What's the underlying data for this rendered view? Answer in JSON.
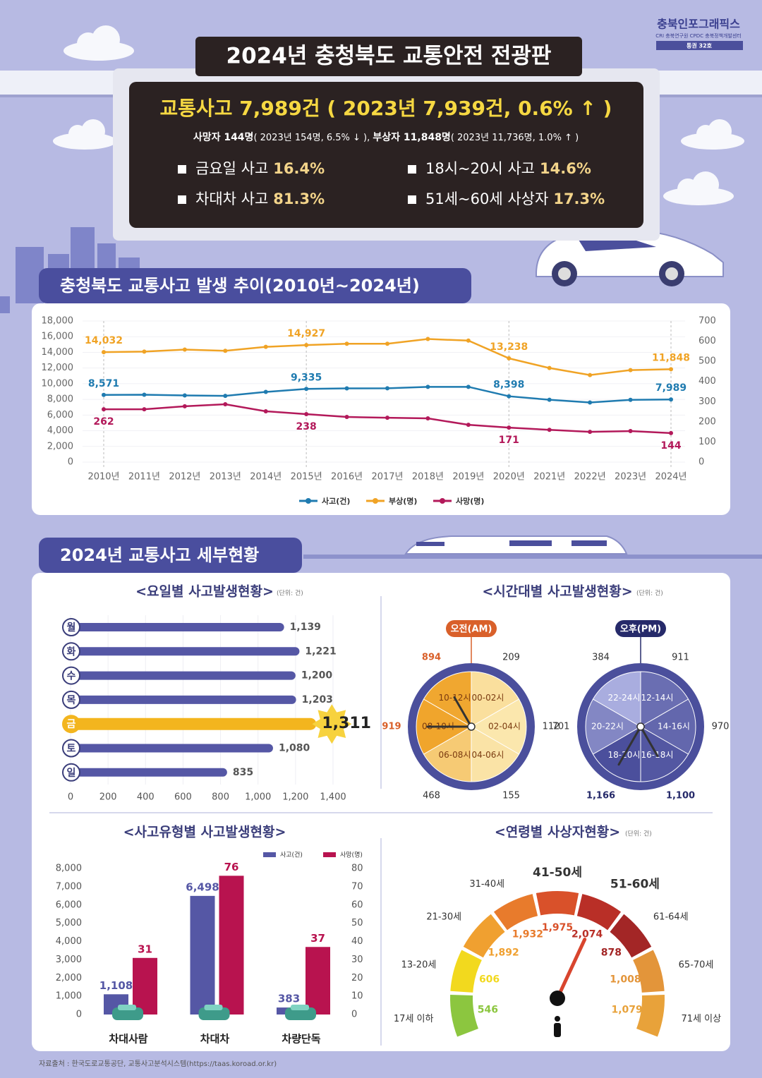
{
  "header": {
    "brand": "충북인포그래픽스",
    "brand_sub": "CRI 충북연구원 CPDC 충북정책개발센터",
    "issue": "통권 32호",
    "title": "2024년 충청북도 교통안전 전광판"
  },
  "summary": {
    "headline": "교통사고 7,989건 ( 2023년 7,939건, 0.6% ↑ )",
    "detail": [
      "사망자 144명",
      "( 2023년 154명, 6.5% ↓ ), ",
      "부상자 11,848명",
      "( 2023년 11,736명, 1.0% ↑ )"
    ],
    "highlights": [
      {
        "label": "금요일 사고",
        "value": "16.4%"
      },
      {
        "label": "18시~20시 사고",
        "value": "14.6%"
      },
      {
        "label": "차대차 사고",
        "value": "81.3%"
      },
      {
        "label": "51세~60세 사상자",
        "value": "17.3%"
      }
    ]
  },
  "sections": [
    "충청북도 교통사고 발생 추이(2010년~2024년)",
    "2024년 교통사고 세부현황"
  ],
  "chart_data": [
    {
      "type": "line",
      "categories": [
        "2010년",
        "2011년",
        "2012년",
        "2013년",
        "2014년",
        "2015년",
        "2016년",
        "2017년",
        "2018년",
        "2019년",
        "2020년",
        "2021년",
        "2022년",
        "2023년",
        "2024년"
      ],
      "series": [
        {
          "name": "사고(건)",
          "color": "#1f7bb0",
          "values": [
            8571,
            8600,
            8500,
            8450,
            8950,
            9335,
            9400,
            9420,
            9600,
            9600,
            8398,
            7950,
            7600,
            7939,
            7989
          ],
          "value_labels": [
            "8,571",
            null,
            null,
            null,
            null,
            "9,335",
            null,
            null,
            null,
            null,
            "8,398",
            null,
            null,
            null,
            "7,989"
          ]
        },
        {
          "name": "부상(명)",
          "color": "#f0a325",
          "values": [
            14032,
            14100,
            14350,
            14200,
            14700,
            14927,
            15100,
            15100,
            15700,
            15500,
            13238,
            12000,
            11100,
            11736,
            11848
          ],
          "value_labels": [
            "14,032",
            null,
            null,
            null,
            null,
            "14,927",
            null,
            null,
            null,
            null,
            "13,238",
            null,
            null,
            null,
            "11,848"
          ]
        },
        {
          "name": "사망(명)",
          "color": "#b3195a",
          "axis": "y2",
          "values": [
            262,
            262,
            277,
            287,
            252,
            238,
            224,
            220,
            217,
            185,
            171,
            160,
            150,
            154,
            144
          ]
        }
      ],
      "ylim": [
        0,
        18000
      ],
      "yticks": [
        0,
        {
          "value": 2000,
          "label": "2,000"
        },
        {
          "value": 4000,
          "label": "4,000"
        },
        {
          "value": 6000,
          "label": "6,000"
        },
        {
          "value": 8000,
          "label": "8,000"
        },
        {
          "value": 10000,
          "label": "10,000"
        },
        {
          "value": 12000,
          "label": "12,000"
        },
        {
          "value": 14000,
          "label": "14,000"
        },
        {
          "value": 16000,
          "label": "16,000"
        },
        {
          "value": 18000,
          "label": "18,000"
        }
      ],
      "y2lim": [
        0,
        700
      ],
      "y2ticks": [
        0,
        100,
        200,
        300,
        400,
        500,
        600,
        700
      ],
      "grid": true,
      "legend": "bottom"
    },
    {
      "type": "hbar",
      "title": "<요일별 사고발생현황>",
      "unit": "(단위: 건)",
      "categories": [
        "월",
        "화",
        "수",
        "목",
        "금",
        "토",
        "일"
      ],
      "values": [
        1139,
        1221,
        1200,
        1203,
        1311,
        1080,
        835
      ],
      "value_labels": [
        "1,139",
        "1,221",
        "1,200",
        "1,203",
        "1,311",
        "1,080",
        "835"
      ],
      "colors": [
        "#5557a5",
        "#5557a5",
        "#5557a5",
        "#5557a5",
        "#f3b51e",
        "#5557a5",
        "#5557a5"
      ],
      "xlim": [
        0,
        1400
      ],
      "xticks": [
        0,
        200,
        400,
        600,
        800,
        {
          "value": 1000,
          "label": "1,000"
        },
        {
          "value": 1200,
          "label": "1,200"
        },
        {
          "value": 1400,
          "label": "1,400"
        }
      ]
    },
    {
      "type": "clock",
      "title": "<시간대별 사고발생현황>",
      "unit": "(단위: 건)",
      "dials": [
        {
          "name": "오전(AM)",
          "color": "#d9602a",
          "color_low": "#fbe7ad",
          "color_high": "#f0a52c",
          "categories": [
            "00-02시",
            "02-04시",
            "04-06시",
            "06-08시",
            "08-10시",
            "10-12시"
          ],
          "values": [
            209,
            112,
            155,
            468,
            919,
            894
          ]
        },
        {
          "name": "오후(PM)",
          "color": "#262a6a",
          "color_low": "#a9addf",
          "color_high": "#4b4f9c",
          "categories": [
            "12-14시",
            "14-16시",
            "16-18시",
            "18-20시",
            "20-22시",
            "22-24시"
          ],
          "values": [
            911,
            970,
            1100,
            1166,
            701,
            384
          ],
          "value_labels": [
            "911",
            "970",
            "1,100",
            "1,166",
            "701",
            "384"
          ]
        }
      ]
    },
    {
      "type": "groupbar",
      "title": "<사고유형별 사고발생현황>",
      "categories": [
        "차대사람",
        "차대차",
        "차량단독"
      ],
      "series": [
        {
          "name": "사고(건)",
          "color": "#5557a5",
          "values": [
            1108,
            6498,
            383
          ],
          "value_labels": [
            "1,108",
            "6,498",
            "383"
          ]
        },
        {
          "name": "사망(명)",
          "color": "#b8134f",
          "axis": "y2",
          "values": [
            31,
            76,
            37
          ]
        }
      ],
      "ylim": [
        0,
        8000
      ],
      "yticks": [
        0,
        {
          "value": 1000,
          "label": "1,000"
        },
        {
          "value": 2000,
          "label": "2,000"
        },
        {
          "value": 3000,
          "label": "3,000"
        },
        {
          "value": 4000,
          "label": "4,000"
        },
        {
          "value": 5000,
          "label": "5,000"
        },
        {
          "value": 6000,
          "label": "6,000"
        },
        {
          "value": 7000,
          "label": "7,000"
        },
        {
          "value": 8000,
          "label": "8,000"
        }
      ],
      "y2lim": [
        0,
        80
      ],
      "y2ticks": [
        0,
        10,
        20,
        30,
        40,
        50,
        60,
        70,
        80
      ],
      "legend": "top-right"
    },
    {
      "type": "gauge",
      "title": "<연령별 사상자현황>",
      "unit": "(단위: 건)",
      "categories": [
        "17세 이하",
        "13-20세",
        "21-30세",
        "31-40세",
        "41-50세",
        "51-60세",
        "61-64세",
        "65-70세",
        "71세 이상"
      ],
      "values": [
        546,
        606,
        1892,
        1932,
        1975,
        2074,
        878,
        1008,
        1079
      ],
      "value_labels": [
        "546",
        "606",
        "1,892",
        "1,932",
        "1,975",
        "2,074",
        "878",
        "1,008",
        "1,079"
      ],
      "colors": [
        "#8cc63f",
        "#f2d91e",
        "#f0a030",
        "#e87b2c",
        "#d9512a",
        "#b92f27",
        "#a32626",
        "#e3953a",
        "#e8a23a"
      ]
    }
  ],
  "source": "자료출처 : 한국도로교통공단, 교통사고분석시스템(https://taas.koroad.or.kr)"
}
